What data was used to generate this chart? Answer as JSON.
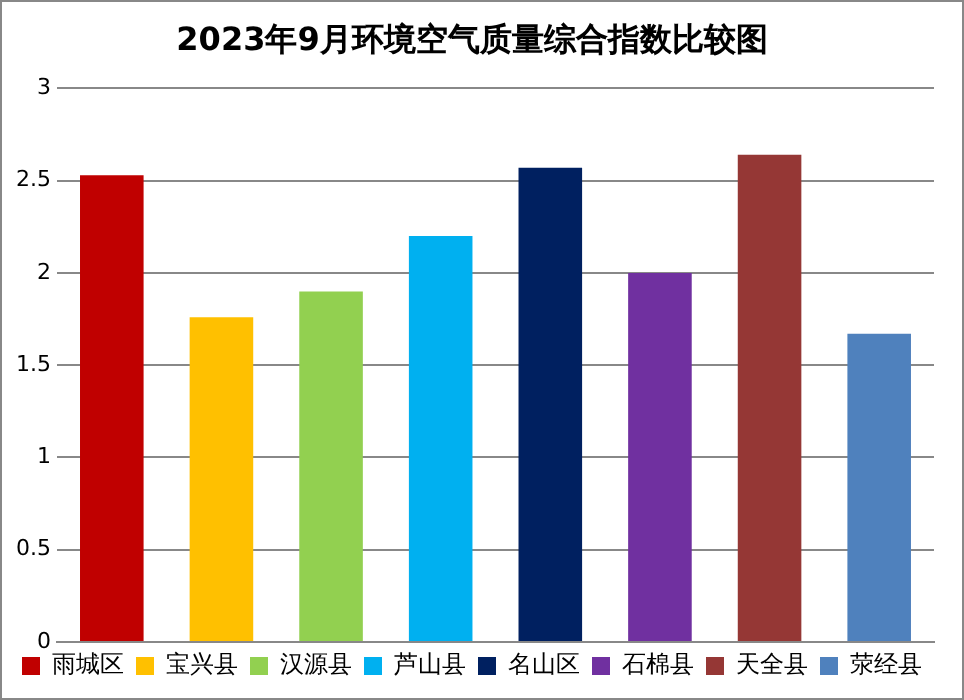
{
  "chart_data": {
    "type": "bar",
    "title": "2023年9月环境空气质量综合指数比较图",
    "categories": [
      null,
      null,
      null,
      null,
      null,
      null,
      null,
      null
    ],
    "series": [
      {
        "name": "雨城区",
        "color": "#c00000",
        "values": [
          2.53,
          null,
          null,
          null,
          null,
          null,
          null,
          null
        ]
      },
      {
        "name": "宝兴县",
        "color": "#ffc000",
        "values": [
          null,
          1.76,
          null,
          null,
          null,
          null,
          null,
          null
        ]
      },
      {
        "name": "汉源县",
        "color": "#92d050",
        "values": [
          null,
          null,
          1.9,
          null,
          null,
          null,
          null,
          null
        ]
      },
      {
        "name": "芦山县",
        "color": "#00b0f0",
        "values": [
          null,
          null,
          null,
          2.2,
          null,
          null,
          null,
          null
        ]
      },
      {
        "name": "名山区",
        "color": "#002060",
        "values": [
          null,
          null,
          null,
          null,
          2.57,
          null,
          null,
          null
        ]
      },
      {
        "name": "石棉县",
        "color": "#7030a0",
        "values": [
          null,
          null,
          null,
          null,
          null,
          2.0,
          null,
          null
        ]
      },
      {
        "name": "天全县",
        "color": "#953735",
        "values": [
          null,
          null,
          null,
          null,
          null,
          null,
          2.64,
          null
        ]
      },
      {
        "name": "荥经县",
        "color": "#4f81bd",
        "values": [
          null,
          null,
          null,
          null,
          null,
          null,
          null,
          1.67
        ]
      }
    ],
    "ylim": [
      0,
      3
    ],
    "yticks": [
      0,
      0.5,
      1,
      1.5,
      2,
      2.5,
      3
    ],
    "grid": "y",
    "legend": "bottom",
    "tick_labels": "y"
  }
}
